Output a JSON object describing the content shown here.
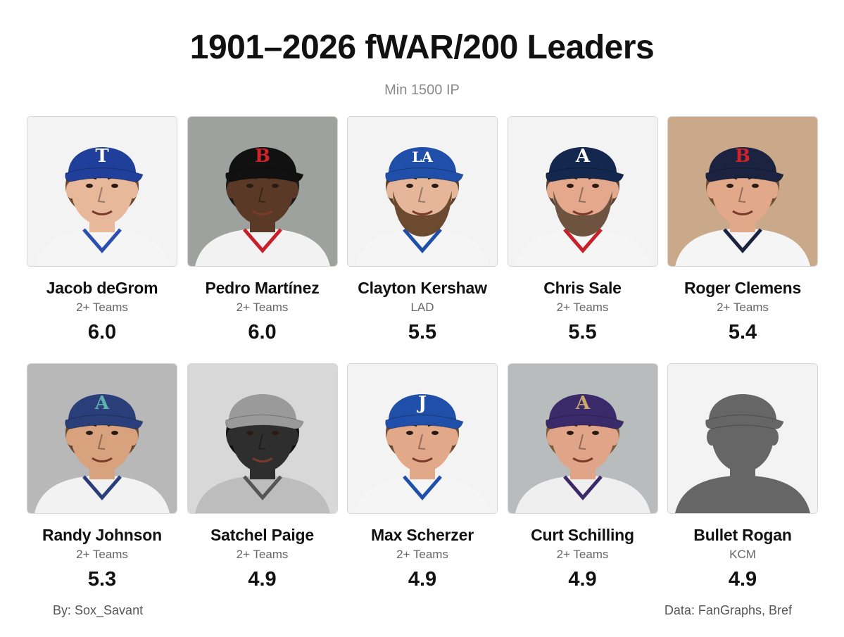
{
  "title": "1901–2026 fWAR/200 Leaders",
  "subtitle": "Min 1500 IP",
  "players": [
    {
      "name": "Jacob deGrom",
      "team": "2+ Teams",
      "value": "6.0",
      "bg": "#f3f3f3",
      "cap": "#1f3f9a",
      "logo": "T",
      "logo_color": "#ffffff",
      "skin": "#e8b89a",
      "hair": "#6b4a2e",
      "beard": "",
      "jersey": "#f5f5f5",
      "trim": "#2a4fb0"
    },
    {
      "name": "Pedro Martínez",
      "team": "2+ Teams",
      "value": "6.0",
      "bg": "#9ea29e",
      "cap": "#111111",
      "logo": "B",
      "logo_color": "#d2232a",
      "skin": "#5a3a26",
      "hair": "#1a1a1a",
      "beard": "",
      "jersey": "#f2f2f2",
      "trim": "#c8202a"
    },
    {
      "name": "Clayton Kershaw",
      "team": "LAD",
      "value": "5.5",
      "bg": "#f3f3f3",
      "cap": "#1f4fa8",
      "logo": "LA",
      "logo_color": "#ffffff",
      "skin": "#e6b69a",
      "hair": "#5a3f2a",
      "beard": "#6b4a30",
      "jersey": "#f5f5f5",
      "trim": "#1f4fa8"
    },
    {
      "name": "Chris Sale",
      "team": "2+ Teams",
      "value": "5.5",
      "bg": "#f3f3f3",
      "cap": "#13274f",
      "logo": "A",
      "logo_color": "#ffffff",
      "skin": "#e4a88c",
      "hair": "#5a4030",
      "beard": "#6e5440",
      "jersey": "#f5f5f5",
      "trim": "#c8202a"
    },
    {
      "name": "Roger Clemens",
      "team": "2+ Teams",
      "value": "5.4",
      "bg": "#c9a98a",
      "cap": "#1b2340",
      "logo": "B",
      "logo_color": "#d2232a",
      "skin": "#e2a88a",
      "hair": "#6a4a30",
      "beard": "",
      "jersey": "#f5f5f5",
      "trim": "#1b2340"
    },
    {
      "name": "Randy Johnson",
      "team": "2+ Teams",
      "value": "5.3",
      "bg": "#b8b8b8",
      "cap": "#2a3f7a",
      "logo": "A",
      "logo_color": "#5fb0b0",
      "skin": "#d9a27e",
      "hair": "#6b4a2a",
      "beard": "",
      "jersey": "#f2f2f2",
      "trim": "#2a3f7a"
    },
    {
      "name": "Satchel Paige",
      "team": "2+ Teams",
      "value": "4.9",
      "bg": "#d8d8d8",
      "cap": "#9a9a9a",
      "logo": "",
      "logo_color": "#ffffff",
      "skin": "#2e2e2e",
      "hair": "#111111",
      "beard": "",
      "jersey": "#bdbdbd",
      "trim": "#555555"
    },
    {
      "name": "Max Scherzer",
      "team": "2+ Teams",
      "value": "4.9",
      "bg": "#f3f3f3",
      "cap": "#1f4fa8",
      "logo": "J",
      "logo_color": "#ffffff",
      "skin": "#e2a88a",
      "hair": "#6b4a30",
      "beard": "",
      "jersey": "#f5f5f5",
      "trim": "#1f4fa8"
    },
    {
      "name": "Curt Schilling",
      "team": "2+ Teams",
      "value": "4.9",
      "bg": "#b8bcbc",
      "cap": "#3a2a6a",
      "logo": "A",
      "logo_color": "#c9a86a",
      "skin": "#e0a488",
      "hair": "#7a5a3a",
      "beard": "",
      "jersey": "#efefef",
      "trim": "#3a2a6a"
    },
    {
      "name": "Bullet Rogan",
      "team": "KCM",
      "value": "4.9",
      "bg": "#f3f3f3",
      "cap": "#666666",
      "logo": "",
      "logo_color": "#666666",
      "skin": "#666666",
      "hair": "#666666",
      "beard": "",
      "jersey": "#666666",
      "trim": "#666666"
    }
  ],
  "footer": {
    "credit": "By: Sox_Savant",
    "source": "Data: FanGraphs, Bref"
  }
}
